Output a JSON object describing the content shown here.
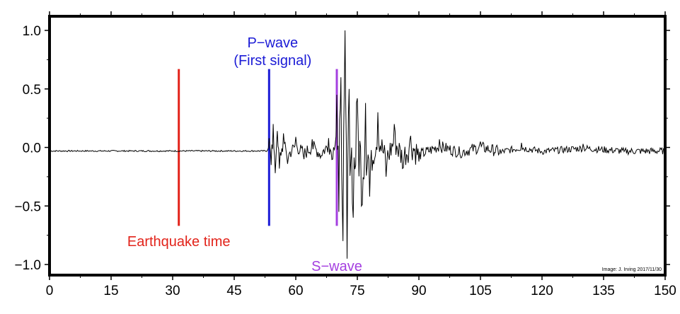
{
  "chart_data": {
    "type": "line",
    "title": "",
    "xlabel": "",
    "ylabel": "",
    "xlim": [
      0,
      150
    ],
    "ylim": [
      -1.1,
      1.0
    ],
    "x_ticks": [
      0,
      15,
      30,
      45,
      60,
      75,
      90,
      105,
      120,
      135,
      150
    ],
    "x_tick_labels": [
      "0",
      "15",
      "30",
      "45",
      "60",
      "75",
      "90",
      "105",
      "120",
      "135",
      "150"
    ],
    "y_ticks": [
      1.0,
      0.5,
      0.0,
      -0.5,
      -1.0
    ],
    "y_tick_labels": [
      "1.0",
      "0.5",
      "0.0",
      "−0.5",
      "−1.0"
    ],
    "grid": false,
    "baseline": -0.03,
    "trace_color": "#000000",
    "series": [
      {
        "x": [
          0,
          10,
          20,
          30,
          40,
          50,
          53,
          53.5,
          54,
          54.5,
          55,
          55.5,
          56,
          57,
          58,
          60,
          62,
          64,
          66,
          68,
          69,
          70,
          70.5,
          71,
          71.5,
          72,
          72.5,
          73,
          74,
          75,
          76,
          77,
          78,
          80,
          82,
          84,
          86,
          88,
          90,
          95,
          100,
          105,
          110,
          115,
          120,
          130,
          140,
          150
        ],
        "y": [
          -0.03,
          -0.03,
          -0.03,
          -0.03,
          -0.03,
          -0.03,
          -0.03,
          0.08,
          -0.15,
          0.2,
          -0.22,
          0.14,
          -0.18,
          0.12,
          -0.14,
          0.09,
          -0.1,
          0.07,
          -0.09,
          0.08,
          -0.1,
          0.45,
          -0.55,
          0.6,
          -0.8,
          1.0,
          -0.95,
          0.5,
          -0.6,
          0.42,
          -0.5,
          0.38,
          -0.42,
          0.3,
          -0.25,
          0.2,
          -0.18,
          0.1,
          -0.12,
          0.07,
          -0.06,
          0.05,
          -0.05,
          0.04,
          -0.04,
          0.03,
          -0.035,
          -0.03
        ]
      }
    ],
    "markers": [
      {
        "label": "Earthquake time",
        "x": 31.5,
        "y_top": 0.67,
        "y_bottom": -0.67,
        "color": "#e2231a"
      },
      {
        "label": "P−wave",
        "sublabel": "(First signal)",
        "x": 53.5,
        "y_top": 0.67,
        "y_bottom": -0.67,
        "color": "#1b1bd6"
      },
      {
        "label": "S−wave",
        "x": 70,
        "y_top": 0.67,
        "y_bottom": -0.67,
        "color": "#a43fe0"
      }
    ],
    "credit": "Image: J. Irving 2017/11/30"
  }
}
